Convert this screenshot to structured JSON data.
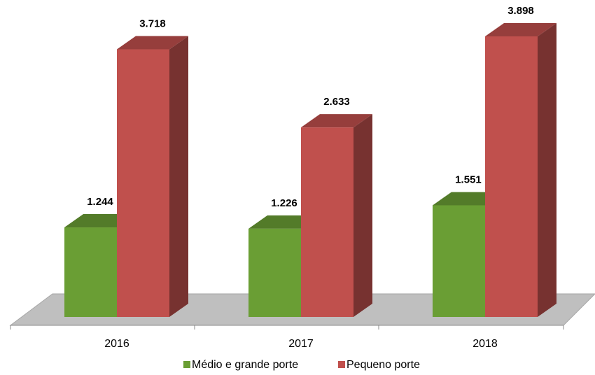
{
  "chart_data": {
    "type": "bar3d",
    "categories": [
      "2016",
      "2017",
      "2018"
    ],
    "series": [
      {
        "name": "Médio e grande porte",
        "color": "#6a9e34",
        "values": [
          1244,
          1226,
          1551
        ],
        "value_labels": [
          "1.244",
          "1.226",
          "1.551"
        ]
      },
      {
        "name": "Pequeno porte",
        "color": "#c0504d",
        "values": [
          3718,
          2633,
          3898
        ],
        "value_labels": [
          "3.718",
          "2.633",
          "3.898"
        ]
      }
    ]
  }
}
